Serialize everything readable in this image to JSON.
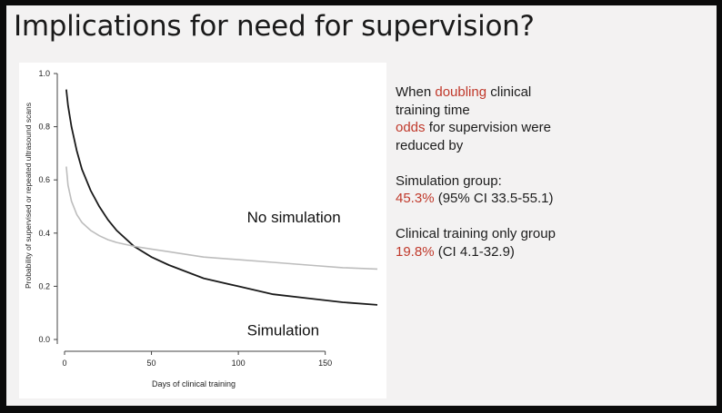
{
  "slide": {
    "title": "Implications for need for supervision?"
  },
  "notes": {
    "intro_prefix": "When ",
    "intro_red": "doubling",
    "intro_rest": " clinical training time",
    "odds_red": "odds",
    "odds_rest": " for supervision were reduced by",
    "sim_heading": "Simulation group:",
    "sim_value": "45.3%",
    "sim_ci": " (95% CI 33.5-55.1)",
    "clin_heading": "Clinical training only group",
    "clin_value": "19.8%",
    "clin_ci": " (CI 4.1-32.9)"
  },
  "colors": {
    "accent_red": "#c0392b",
    "simulation_curve": "#1a1a1a",
    "no_simulation_curve": "#bdbdbd"
  },
  "chart_data": {
    "type": "line",
    "xlabel": "Days of clinical training",
    "ylabel": "Probability of supervised or repeated ultrasound scans",
    "xlim": [
      0,
      180
    ],
    "ylim": [
      0,
      1.0
    ],
    "xticks": [
      0,
      50,
      100,
      150
    ],
    "yticks": [
      0.0,
      0.2,
      0.4,
      0.6,
      0.8,
      1.0
    ],
    "grid": false,
    "series": [
      {
        "name": "Simulation",
        "color": "#1a1a1a",
        "x": [
          1,
          2,
          4,
          7,
          10,
          15,
          20,
          25,
          30,
          40,
          50,
          60,
          80,
          100,
          120,
          140,
          160,
          180
        ],
        "y": [
          0.94,
          0.88,
          0.8,
          0.71,
          0.64,
          0.56,
          0.5,
          0.45,
          0.41,
          0.35,
          0.31,
          0.28,
          0.23,
          0.2,
          0.17,
          0.155,
          0.14,
          0.13
        ]
      },
      {
        "name": "No simulation",
        "color": "#bdbdbd",
        "x": [
          1,
          2,
          4,
          7,
          10,
          15,
          20,
          25,
          30,
          40,
          50,
          60,
          80,
          100,
          120,
          140,
          160,
          180
        ],
        "y": [
          0.65,
          0.58,
          0.52,
          0.47,
          0.44,
          0.41,
          0.39,
          0.375,
          0.365,
          0.35,
          0.34,
          0.33,
          0.31,
          0.3,
          0.29,
          0.28,
          0.27,
          0.265
        ]
      }
    ]
  }
}
